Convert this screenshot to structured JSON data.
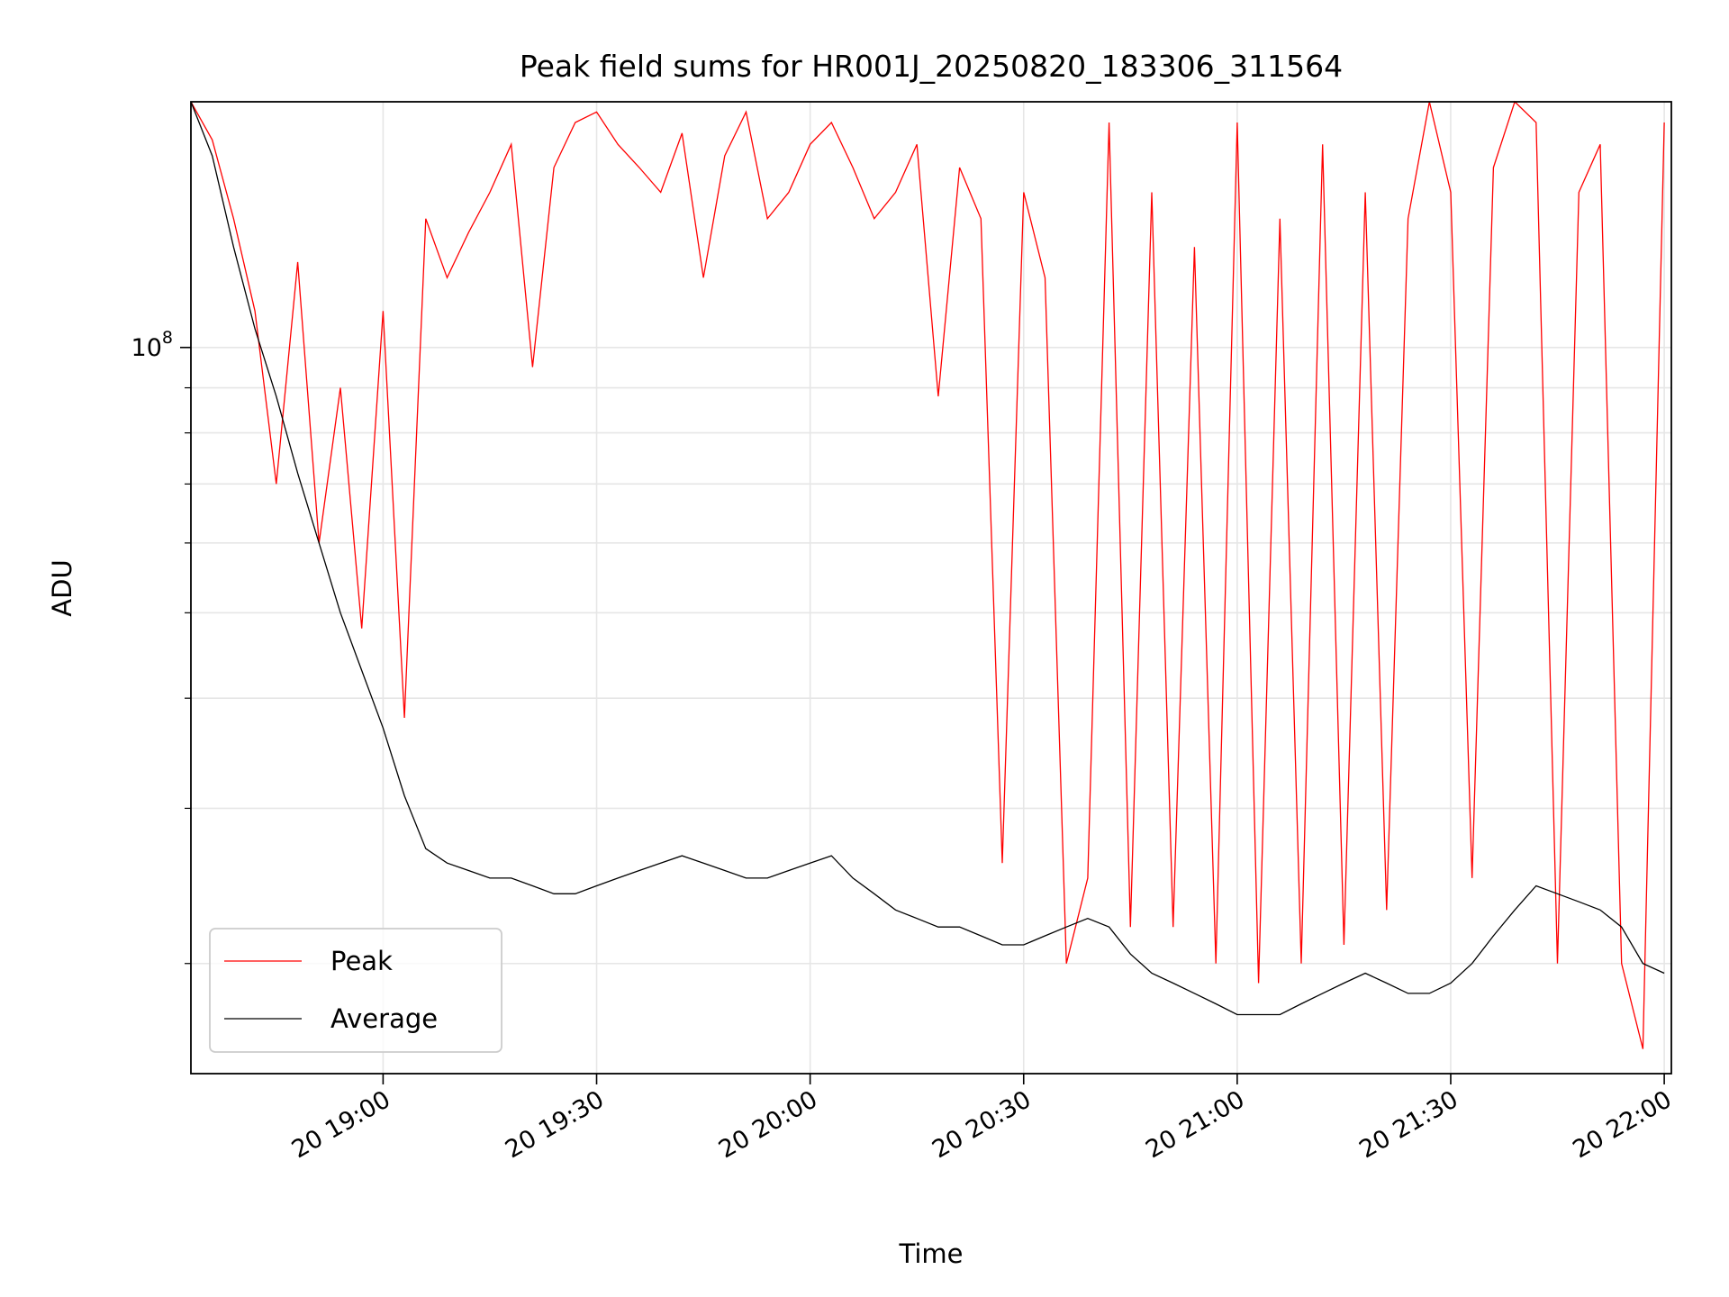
{
  "chart_data": {
    "type": "line",
    "title": "Peak field sums for HR001J_20250820_183306_311564",
    "xlabel": "Time",
    "ylabel": "ADU",
    "yscale": "log",
    "xlim": [
      "20 18:33",
      "20 22:01"
    ],
    "ylim": [
      15000000.0,
      190000000.0
    ],
    "grid": true,
    "legend_position": "lower-left",
    "x_ticks": [
      {
        "time": "20 19:00",
        "label": "20 19:00"
      },
      {
        "time": "20 19:30",
        "label": "20 19:30"
      },
      {
        "time": "20 20:00",
        "label": "20 20:00"
      },
      {
        "time": "20 20:30",
        "label": "20 20:30"
      },
      {
        "time": "20 21:00",
        "label": "20 21:00"
      },
      {
        "time": "20 21:30",
        "label": "20 21:30"
      },
      {
        "time": "20 22:00",
        "label": "20 22:00"
      }
    ],
    "y_ticks": [
      {
        "value": 100000000.0,
        "label_base": "10",
        "label_exp": "8"
      }
    ],
    "series": [
      {
        "name": "Peak",
        "color": "#ff0000",
        "x": [
          "20 18:33",
          "20 18:36",
          "20 18:39",
          "20 18:42",
          "20 18:45",
          "20 18:48",
          "20 18:51",
          "20 18:54",
          "20 18:57",
          "20 19:00",
          "20 19:03",
          "20 19:06",
          "20 19:09",
          "20 19:12",
          "20 19:15",
          "20 19:18",
          "20 19:21",
          "20 19:24",
          "20 19:27",
          "20 19:30",
          "20 19:33",
          "20 19:36",
          "20 19:39",
          "20 19:42",
          "20 19:45",
          "20 19:48",
          "20 19:51",
          "20 19:54",
          "20 19:57",
          "20 20:00",
          "20 20:03",
          "20 20:06",
          "20 20:09",
          "20 20:12",
          "20 20:15",
          "20 20:18",
          "20 20:21",
          "20 20:24",
          "20 20:27",
          "20 20:30",
          "20 20:33",
          "20 20:36",
          "20 20:39",
          "20 20:42",
          "20 20:45",
          "20 20:48",
          "20 20:51",
          "20 20:54",
          "20 20:57",
          "20 21:00",
          "20 21:03",
          "20 21:06",
          "20 21:09",
          "20 21:12",
          "20 21:15",
          "20 21:18",
          "20 21:21",
          "20 21:24",
          "20 21:27",
          "20 21:30",
          "20 21:33",
          "20 21:36",
          "20 21:39",
          "20 21:42",
          "20 21:45",
          "20 21:48",
          "20 21:51",
          "20 21:54",
          "20 21:57",
          "20 22:00"
        ],
        "values": [
          190000000,
          172000000,
          140000000,
          110000000,
          70000000,
          125000000,
          60000000,
          90000000,
          48000000,
          110000000,
          38000000,
          140000000,
          120000000,
          135000000,
          150000000,
          170000000,
          95000000,
          160000000,
          180000000,
          185000000,
          170000000,
          160000000,
          150000000,
          175000000,
          120000000,
          165000000,
          185000000,
          140000000,
          150000000,
          170000000,
          180000000,
          160000000,
          140000000,
          150000000,
          170000000,
          88000000,
          160000000,
          140000000,
          26000000,
          150000000,
          120000000,
          20000000,
          25000000,
          180000000,
          22000000,
          150000000,
          22000000,
          130000000,
          20000000,
          180000000,
          19000000,
          140000000,
          20000000,
          170000000,
          21000000,
          150000000,
          23000000,
          140000000,
          190000000,
          150000000,
          25000000,
          160000000,
          190000000,
          180000000,
          20000000,
          150000000,
          170000000,
          20000000,
          16000000,
          180000000
        ]
      },
      {
        "name": "Average",
        "color": "#000000",
        "x": [
          "20 18:33",
          "20 18:36",
          "20 18:39",
          "20 18:42",
          "20 18:45",
          "20 18:48",
          "20 18:51",
          "20 18:54",
          "20 18:57",
          "20 19:00",
          "20 19:03",
          "20 19:06",
          "20 19:09",
          "20 19:12",
          "20 19:15",
          "20 19:18",
          "20 19:21",
          "20 19:24",
          "20 19:27",
          "20 19:30",
          "20 19:33",
          "20 19:36",
          "20 19:39",
          "20 19:42",
          "20 19:45",
          "20 19:48",
          "20 19:51",
          "20 19:54",
          "20 19:57",
          "20 20:00",
          "20 20:03",
          "20 20:06",
          "20 20:09",
          "20 20:12",
          "20 20:15",
          "20 20:18",
          "20 20:21",
          "20 20:24",
          "20 20:27",
          "20 20:30",
          "20 20:33",
          "20 20:36",
          "20 20:39",
          "20 20:42",
          "20 20:45",
          "20 20:48",
          "20 20:51",
          "20 20:54",
          "20 20:57",
          "20 21:00",
          "20 21:03",
          "20 21:06",
          "20 21:09",
          "20 21:12",
          "20 21:15",
          "20 21:18",
          "20 21:21",
          "20 21:24",
          "20 21:27",
          "20 21:30",
          "20 21:33",
          "20 21:36",
          "20 21:39",
          "20 21:42",
          "20 21:45",
          "20 21:48",
          "20 21:51",
          "20 21:54",
          "20 21:57",
          "20 22:00"
        ],
        "values": [
          190000000,
          165000000,
          130000000,
          105000000,
          88000000,
          72000000,
          60000000,
          50000000,
          43000000,
          37000000,
          31000000,
          27000000,
          26000000,
          25500000,
          25000000,
          25000000,
          24500000,
          24000000,
          24000000,
          24500000,
          25000000,
          25500000,
          26000000,
          26500000,
          26000000,
          25500000,
          25000000,
          25000000,
          25500000,
          26000000,
          26500000,
          25000000,
          24000000,
          23000000,
          22500000,
          22000000,
          22000000,
          21500000,
          21000000,
          21000000,
          21500000,
          22000000,
          22500000,
          22000000,
          20500000,
          19500000,
          19000000,
          18500000,
          18000000,
          17500000,
          17500000,
          17500000,
          18000000,
          18500000,
          19000000,
          19500000,
          19000000,
          18500000,
          18500000,
          19000000,
          20000000,
          21500000,
          23000000,
          24500000,
          24000000,
          23500000,
          23000000,
          22000000,
          20000000,
          19500000
        ]
      }
    ]
  }
}
